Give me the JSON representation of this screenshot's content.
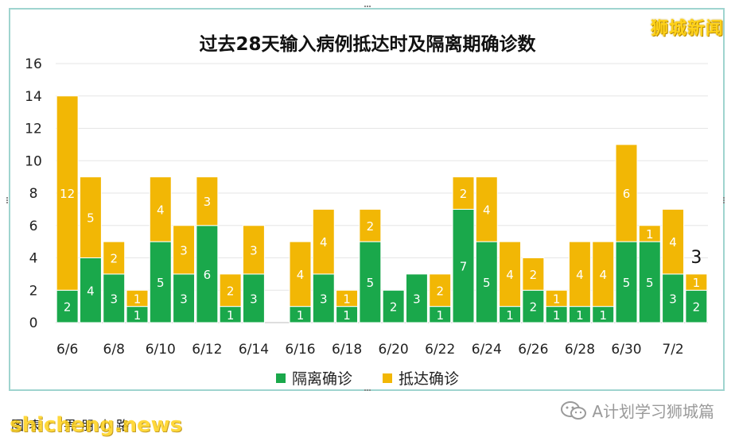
{
  "brand_label": "狮城新闻",
  "footer_text": "图表：畀朋小路",
  "watermark_text": "shicheng.news",
  "credit_text": "A计划学习狮城篇",
  "colors": {
    "isolation": "#1aa84b",
    "arrival": "#f2b705",
    "grid": "#e6e6e6",
    "frame": "#9fd4cf"
  },
  "chart_data": {
    "type": "bar",
    "stacked": true,
    "title": "过去28天输入病例抵达时及隔离期确诊数",
    "xlabel": "",
    "ylabel": "",
    "ylim": [
      0,
      16
    ],
    "yticks": [
      0,
      2,
      4,
      6,
      8,
      10,
      12,
      14,
      16
    ],
    "grid": true,
    "legend_position": "bottom",
    "categories": [
      "6/6",
      "6/7",
      "6/8",
      "6/9",
      "6/10",
      "6/11",
      "6/12",
      "6/13",
      "6/14",
      "6/15",
      "6/16",
      "6/17",
      "6/18",
      "6/19",
      "6/20",
      "6/21",
      "6/22",
      "6/23",
      "6/24",
      "6/25",
      "6/26",
      "6/27",
      "6/28",
      "6/29",
      "6/30",
      "7/1",
      "7/2",
      "7/3"
    ],
    "tick_labels": [
      "6/6",
      "",
      "6/8",
      "",
      "6/10",
      "",
      "6/12",
      "",
      "6/14",
      "",
      "6/16",
      "",
      "6/18",
      "",
      "6/20",
      "",
      "6/22",
      "",
      "6/24",
      "",
      "6/26",
      "",
      "6/28",
      "",
      "6/30",
      "",
      "7/2",
      ""
    ],
    "series": [
      {
        "name": "隔离确诊",
        "values": [
          2,
          4,
          3,
          1,
          5,
          3,
          6,
          1,
          3,
          0,
          1,
          3,
          1,
          5,
          2,
          3,
          1,
          7,
          5,
          1,
          2,
          1,
          1,
          1,
          5,
          5,
          3,
          2
        ]
      },
      {
        "name": "抵达确诊",
        "values": [
          12,
          5,
          2,
          1,
          4,
          3,
          3,
          2,
          3,
          0,
          4,
          4,
          1,
          2,
          0,
          0,
          2,
          2,
          4,
          4,
          2,
          1,
          4,
          4,
          6,
          1,
          4,
          1
        ]
      }
    ],
    "annotations": [
      {
        "category": "7/3",
        "text": "3"
      }
    ]
  }
}
